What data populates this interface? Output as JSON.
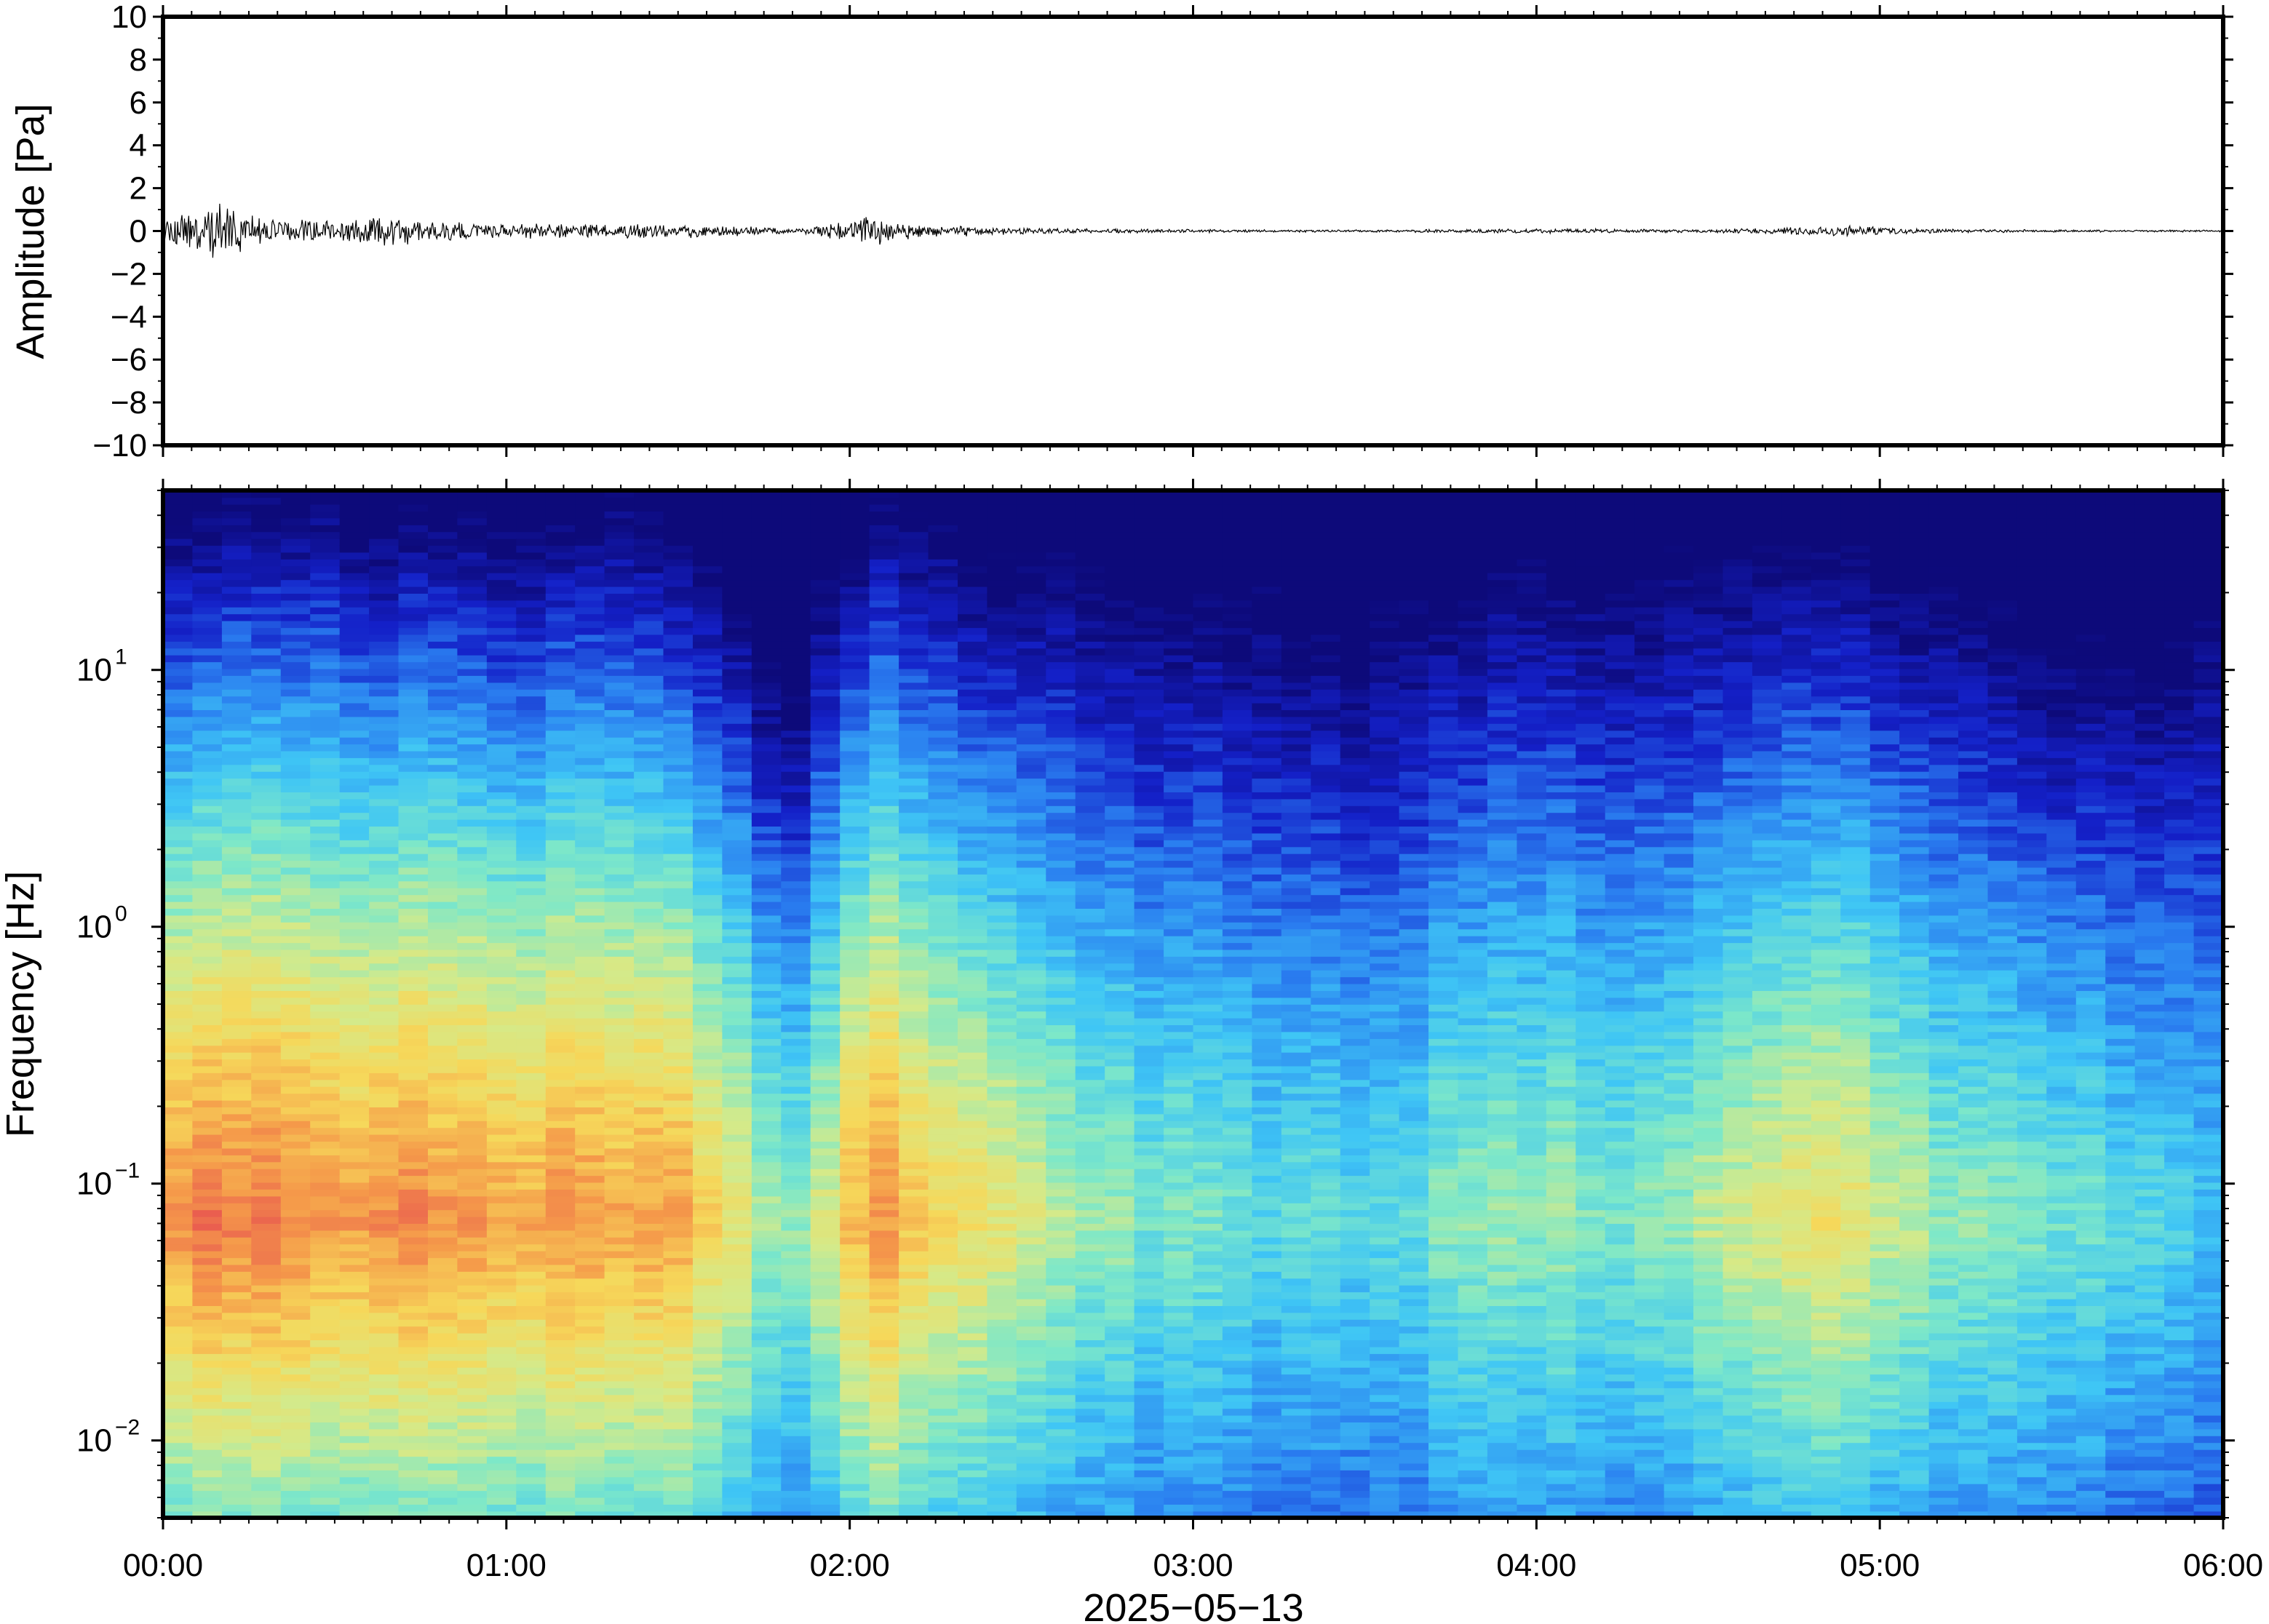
{
  "chart_data": [
    {
      "type": "line",
      "panel": "waveform",
      "ylabel": "Amplitude [Pa]",
      "ylim": [
        -10,
        10
      ],
      "y_ticks": [
        10,
        8,
        6,
        4,
        2,
        0,
        -2,
        -4,
        -6,
        -8,
        -10
      ],
      "y_tick_labels": [
        "10",
        "8",
        "6",
        "4",
        "2",
        "0",
        "−2",
        "−4",
        "−6",
        "−8",
        "−10"
      ],
      "xlim_hours": [
        0,
        6
      ],
      "line_color": "#000000",
      "envelope": {
        "t_hours": [
          0.0,
          0.18,
          0.3,
          0.5,
          0.65,
          0.9,
          1.2,
          1.5,
          1.7,
          1.85,
          1.95,
          2.05,
          2.2,
          2.4,
          2.7,
          3.0,
          3.5,
          4.0,
          4.5,
          4.8,
          4.9,
          5.1,
          5.5,
          6.0
        ],
        "amp_pa": [
          0.6,
          1.7,
          0.6,
          0.6,
          0.8,
          0.4,
          0.35,
          0.4,
          0.25,
          0.1,
          0.4,
          0.8,
          0.35,
          0.2,
          0.12,
          0.08,
          0.06,
          0.12,
          0.08,
          0.22,
          0.3,
          0.12,
          0.06,
          0.05
        ]
      }
    },
    {
      "type": "heatmap",
      "panel": "spectrogram",
      "ylabel": "Frequency [Hz]",
      "y_scale": "log",
      "ylim_hz": [
        0.005,
        50
      ],
      "y_ticks_hz": [
        10,
        1,
        0.1,
        0.01
      ],
      "y_tick_labels": [
        {
          "base": "10",
          "exp": "1"
        },
        {
          "base": "10",
          "exp": "0"
        },
        {
          "base": "10",
          "exp": "−1"
        },
        {
          "base": "10",
          "exp": "−2"
        }
      ],
      "colormap": [
        "#0d0a7a",
        "#1420c8",
        "#2a7ef0",
        "#3fc6f5",
        "#7ee8c8",
        "#d4ea8a",
        "#f6d85a",
        "#f59a4a",
        "#e85550"
      ],
      "x_tick_labels": [
        "00:00",
        "01:00",
        "02:00",
        "03:00",
        "04:00",
        "05:00",
        "06:00"
      ],
      "x_ticks_hours": [
        0,
        1,
        2,
        3,
        4,
        5,
        6
      ],
      "xlim_hours": [
        0,
        6
      ],
      "xlabel": "2025−05−13",
      "energy_profile": {
        "t_hours": [
          0.0,
          0.5,
          1.0,
          1.5,
          1.7,
          1.85,
          2.05,
          2.3,
          2.6,
          3.0,
          3.5,
          3.9,
          4.3,
          4.9,
          5.2,
          5.7,
          6.0
        ],
        "level": [
          0.92,
          0.9,
          0.87,
          0.85,
          0.62,
          0.52,
          0.9,
          0.72,
          0.58,
          0.48,
          0.42,
          0.55,
          0.52,
          0.7,
          0.55,
          0.45,
          0.38
        ]
      },
      "peak_frequency_hz": 0.07,
      "upper_cutoff_hz": {
        "t_hours": [
          0.0,
          0.5,
          1.0,
          1.4,
          1.7,
          1.85,
          2.1,
          2.4,
          3.0,
          3.5,
          3.9,
          4.4,
          4.9,
          5.2,
          5.7,
          6.0
        ],
        "hz": [
          30,
          30,
          24,
          28,
          10,
          6,
          28,
          20,
          12,
          9,
          16,
          15,
          20,
          12,
          7,
          9
        ]
      }
    }
  ]
}
